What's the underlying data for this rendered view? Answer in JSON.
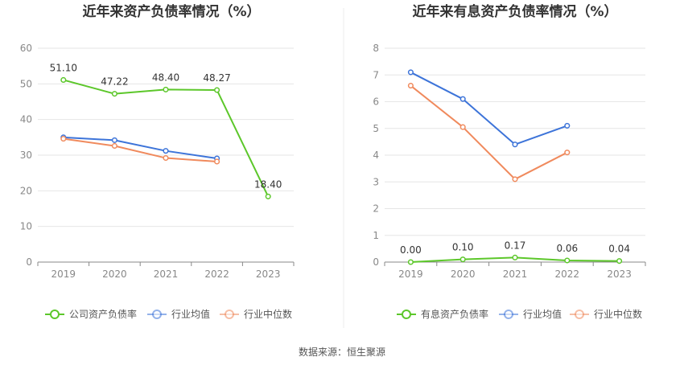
{
  "colors": {
    "company": "#5cc72a",
    "industry_avg": "#3d74d9",
    "industry_median": "#f08a5d",
    "grid": "#e6e6e6",
    "axis": "#888888"
  },
  "source_text": "数据来源：恒生聚源",
  "chart_data": [
    {
      "type": "line",
      "title": "近年来资产负债率情况（%）",
      "categories": [
        "2019",
        "2020",
        "2021",
        "2022",
        "2023"
      ],
      "ylim": [
        0,
        60
      ],
      "yticks": [
        0,
        10,
        20,
        30,
        40,
        50,
        60
      ],
      "grid": true,
      "legend_position": "bottom",
      "series": [
        {
          "name": "公司资产负债率",
          "key": "company",
          "values": [
            51.1,
            47.22,
            48.4,
            48.27,
            18.4
          ],
          "labels": [
            "51.10",
            "47.22",
            "48.40",
            "48.27",
            "18.40"
          ]
        },
        {
          "name": "行业均值",
          "key": "industry_avg",
          "values": [
            35.0,
            34.2,
            31.2,
            29.1,
            null
          ]
        },
        {
          "name": "行业中位数",
          "key": "industry_median",
          "values": [
            34.6,
            32.6,
            29.2,
            28.2,
            null
          ]
        }
      ]
    },
    {
      "type": "line",
      "title": "近年来有息资产负债率情况（%）",
      "categories": [
        "2019",
        "2020",
        "2021",
        "2022",
        "2023"
      ],
      "ylim": [
        0,
        8
      ],
      "yticks": [
        0,
        1,
        2,
        3,
        4,
        5,
        6,
        7,
        8
      ],
      "grid": true,
      "legend_position": "bottom",
      "series": [
        {
          "name": "有息资产负债率",
          "key": "company",
          "values": [
            0.0,
            0.1,
            0.17,
            0.06,
            0.04
          ],
          "labels": [
            "0.00",
            "0.10",
            "0.17",
            "0.06",
            "0.04"
          ]
        },
        {
          "name": "行业均值",
          "key": "industry_avg",
          "values": [
            7.1,
            6.1,
            4.4,
            5.1,
            null
          ]
        },
        {
          "name": "行业中位数",
          "key": "industry_median",
          "values": [
            6.6,
            5.05,
            3.1,
            4.1,
            null
          ]
        }
      ]
    }
  ]
}
